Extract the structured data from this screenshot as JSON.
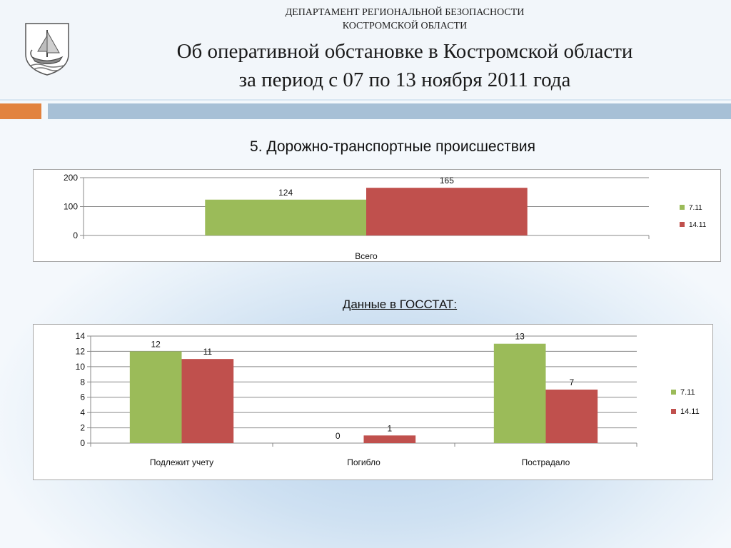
{
  "header": {
    "department_line1": "ДЕПАРТАМЕНТ РЕГИОНАЛЬНОЙ БЕЗОПАСНОСТИ",
    "department_line2": "КОСТРОМСКОЙ ОБЛАСТИ",
    "title_line1": "Об оперативной обстановке в Костромской области",
    "title_line2": "за период с 07 по 13 ноября 2011 года"
  },
  "section_title": "5. Дорожно-транспортные происшествия",
  "gosstat_title": "Данные в ГОССТАТ:",
  "colors": {
    "green": "#9bbb59",
    "red": "#c0504d",
    "orange": "#e2833f",
    "blue_band": "#a7c0d6"
  },
  "chart_data": [
    {
      "type": "bar",
      "categories": [
        "Всего"
      ],
      "series": [
        {
          "name": "7.11",
          "values": [
            124
          ]
        },
        {
          "name": "14.11",
          "values": [
            165
          ]
        }
      ],
      "yticks": [
        "0",
        "100",
        "200"
      ],
      "ylim": [
        0,
        200
      ],
      "legend": "right",
      "grid": true
    },
    {
      "type": "bar",
      "categories": [
        "Подлежит учету",
        "Погибло",
        "Пострадало"
      ],
      "series": [
        {
          "name": "7.11",
          "values": [
            12,
            0,
            13
          ]
        },
        {
          "name": "14.11",
          "values": [
            11,
            1,
            7
          ]
        }
      ],
      "yticks": [
        "0",
        "2",
        "4",
        "6",
        "8",
        "10",
        "12",
        "14"
      ],
      "ylim": [
        0,
        14
      ],
      "legend": "right",
      "grid": true
    }
  ]
}
